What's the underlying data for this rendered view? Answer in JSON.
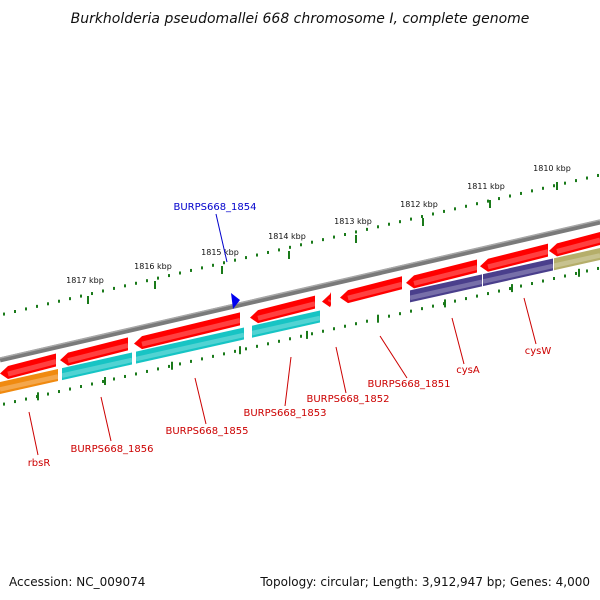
{
  "title": "Burkholderia pseudomallei 668 chromosome I, complete genome",
  "accession": "Accession: NC_009074",
  "topology": "Topology: circular; Length: 3,912,947 bp; Genes: 4,000",
  "ruler_labels": [
    "1810 kbp",
    "1811 kbp",
    "1812 kbp",
    "1813 kbp",
    "1814 kbp",
    "1815 kbp",
    "1816 kbp",
    "1817 kbp"
  ],
  "colors": {
    "backbone": "#777777",
    "ruler": "#1a7a1a",
    "forward_gene": "#ff0000",
    "reverse_gene": "#ff0000",
    "cds_cyan": "#17c4c4",
    "cds_purple": "#4a3f8c",
    "cds_orange": "#f08a10",
    "cds_olive": "#b5ae6a",
    "label_red": "#cc0000",
    "label_blue": "#0000cc",
    "marker": "#0000ee"
  },
  "gene_labels": [
    {
      "id": "BURPS668_1854",
      "text": "BURPS668_1854",
      "color": "blue"
    },
    {
      "id": "BURPS668_1853",
      "text": "BURPS668_1853",
      "color": "red"
    },
    {
      "id": "BURPS668_1852",
      "text": "BURPS668_1852",
      "color": "red"
    },
    {
      "id": "BURPS668_1851",
      "text": "BURPS668_1851",
      "color": "red"
    },
    {
      "id": "cysA",
      "text": "cysA",
      "color": "red"
    },
    {
      "id": "cysW",
      "text": "cysW",
      "color": "red"
    },
    {
      "id": "BURPS668_1855",
      "text": "BURPS668_1855",
      "color": "red"
    },
    {
      "id": "BURPS668_1856",
      "text": "BURPS668_1856",
      "color": "red"
    },
    {
      "id": "rbsR",
      "text": "rbsR",
      "color": "red"
    }
  ]
}
